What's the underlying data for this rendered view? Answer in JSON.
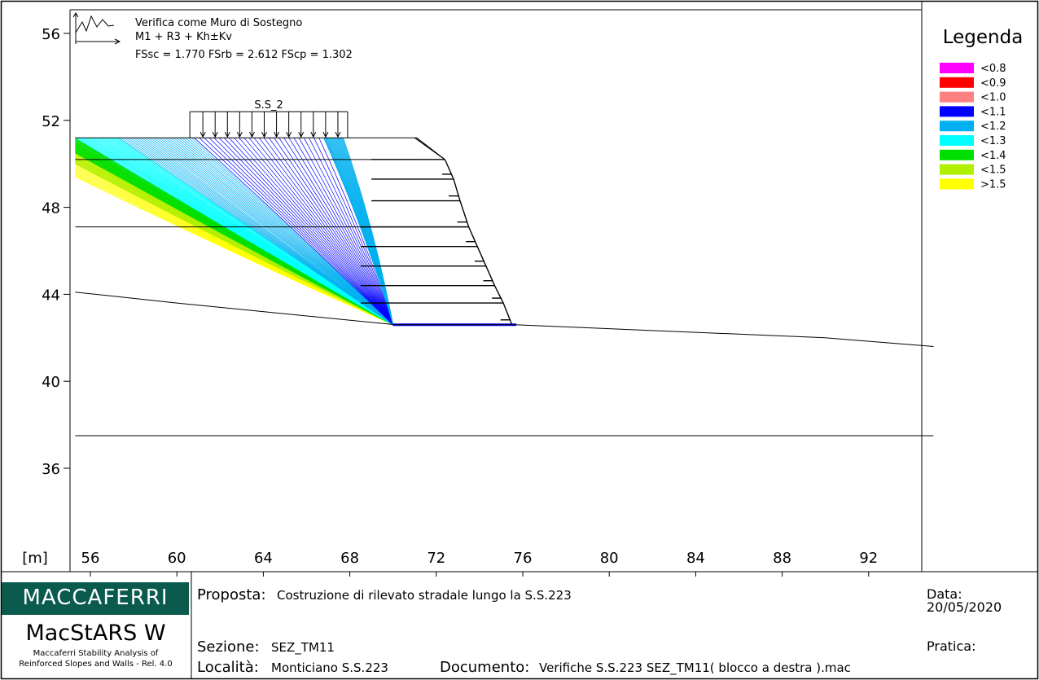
{
  "chart_data": {
    "type": "diagram",
    "stamp": {
      "line1": "Verifica come Muro di Sostegno",
      "line2": "M1 + R3 + Kh±Kv",
      "line3": "FSsc = 1.770 FSrb = 2.612 FScp = 1.302"
    },
    "load_label": "S.S_2",
    "unit_label": "[m]",
    "x_ticks": [
      56,
      60,
      64,
      68,
      72,
      76,
      80,
      84,
      88,
      92
    ],
    "y_ticks": [
      56,
      52,
      48,
      44,
      40,
      36
    ],
    "xlim": [
      55.3,
      95.0
    ],
    "ylim": [
      32.2,
      57.2
    ],
    "grid": false,
    "legend": {
      "title": "Legenda",
      "placement": "right",
      "items": [
        {
          "label": "<0.8",
          "color": "#ff00ff"
        },
        {
          "label": "<0.9",
          "color": "#ff0000"
        },
        {
          "label": "<1.0",
          "color": "#ff8080"
        },
        {
          "label": "<1.1",
          "color": "#0000ff"
        },
        {
          "label": "<1.2",
          "color": "#00b0f0"
        },
        {
          "label": "<1.3",
          "color": "#00ffff"
        },
        {
          "label": "<1.4",
          "color": "#00e000"
        },
        {
          "label": "<1.5",
          "color": "#b0f000"
        },
        {
          "label": ">1.5",
          "color": "#ffff00"
        }
      ]
    },
    "ground_profile": [
      [
        55.3,
        44.1
      ],
      [
        60.0,
        43.6
      ],
      [
        70.1,
        42.6
      ],
      [
        75.7,
        42.6
      ],
      [
        90.0,
        42.0
      ],
      [
        95.0,
        41.6
      ]
    ],
    "layer_lines": [
      {
        "y": 50.2,
        "x": [
          55.3,
          71.0
        ]
      },
      {
        "y": 47.1,
        "x": [
          55.3,
          70.0
        ]
      },
      {
        "y": 37.5,
        "x": [
          55.3,
          95.0
        ]
      }
    ],
    "embankment_top": [
      [
        55.3,
        51.2
      ],
      [
        71.1,
        51.2
      ],
      [
        72.4,
        50.2
      ]
    ],
    "load": {
      "x": [
        60.6,
        67.9
      ],
      "y_base": 51.2,
      "y_top": 52.4,
      "arrows": 12
    },
    "reinforcement_layers": [
      {
        "y_top": 50.2,
        "x_back": 69.0,
        "x_face": 72.4
      },
      {
        "y_top": 49.3,
        "x_back": 69.0,
        "x_face": 72.8
      },
      {
        "y_top": 48.3,
        "x_back": 69.0,
        "x_face": 73.1
      },
      {
        "y_top": 47.1,
        "x_back": 69.0,
        "x_face": 73.5
      },
      {
        "y_top": 46.2,
        "x_back": 69.0,
        "x_face": 73.9
      },
      {
        "y_top": 45.3,
        "x_back": 69.0,
        "x_face": 74.3
      },
      {
        "y_top": 44.4,
        "x_back": 69.0,
        "x_face": 74.7
      },
      {
        "y_top": 43.6,
        "x_back": 69.0,
        "x_face": 75.1
      }
    ],
    "surfaces_toe": [
      70.0,
      42.6
    ],
    "surface_fans": [
      {
        "color": "#ffff00",
        "from": [
          55.3,
          49.4
        ],
        "to": [
          55.3,
          50.6
        ]
      },
      {
        "color": "#b0f000",
        "from": [
          55.3,
          50.0
        ],
        "to": [
          55.3,
          50.9
        ]
      },
      {
        "color": "#00e000",
        "from": [
          55.3,
          50.5
        ],
        "to": [
          55.3,
          51.2
        ]
      },
      {
        "color": "#00ffff",
        "from": [
          55.3,
          51.2
        ],
        "to": [
          57.3,
          51.2
        ]
      },
      {
        "color": "#00b0f0",
        "from": [
          57.3,
          51.2
        ],
        "to": [
          60.8,
          51.2
        ]
      },
      {
        "color": "#0000ff",
        "from": [
          60.8,
          51.2
        ],
        "to": [
          66.8,
          51.2
        ]
      },
      {
        "color": "#00b0f0",
        "from": [
          66.8,
          51.2
        ],
        "to": [
          67.7,
          51.2
        ]
      }
    ]
  },
  "footer": {
    "logo": "MACCAFERRI",
    "product": "MacStARS W",
    "product_sub1": "Maccaferri Stability Analysis of",
    "product_sub2": "Reinforced Slopes and Walls - Rel. 4.0",
    "proposta_label": "Proposta:",
    "proposta_value": "Costruzione di rilevato stradale lungo la S.S.223",
    "sezione_label": "Sezione:",
    "sezione_value": "SEZ_TM11",
    "localita_label": "Località:",
    "localita_value": "Monticiano S.S.223",
    "documento_label": "Documento:",
    "documento_value": "Verifiche S.S.223 SEZ_TM11( blocco a destra ).mac",
    "data_label": "Data:",
    "data_value": "20/05/2020",
    "pratica_label": "Pratica:"
  }
}
